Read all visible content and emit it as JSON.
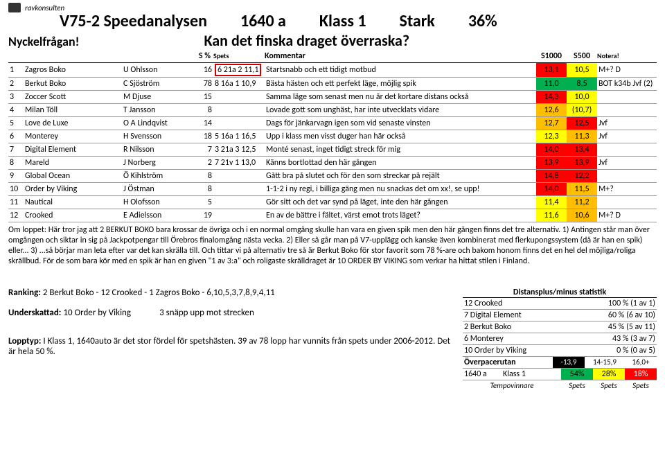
{
  "logo_text": "ravkonsulten",
  "header": {
    "title": "V75-2 Speedanalysen",
    "dist": "1640 a",
    "klass": "Klass 1",
    "start": "Stark",
    "pct": "36%"
  },
  "nyckel": {
    "label": "Nyckelfrågan!",
    "question": "Kan det finska draget överraska?"
  },
  "col": {
    "spct": "S %",
    "spets": "Spets",
    "komm": "Kommentar",
    "s1000": "S1000",
    "s500": "S500",
    "note": "Notera!"
  },
  "colors": {
    "red": "#ff0000",
    "orange": "#ffbf00",
    "yellow": "#ffff00",
    "green": "#00b050",
    "none": ""
  },
  "rows": [
    {
      "n": "1",
      "horse": "Zagros Boko",
      "driver": "U Ohlsson",
      "spct": "16",
      "spets": "6 21a 2 11,1",
      "spets_box": true,
      "komm": "Startsnabb och ett tidigt motbud",
      "s1000": "13,1",
      "c1": "red",
      "s500": "10,5",
      "c2": "yellow",
      "note": "M+? D"
    },
    {
      "n": "2",
      "horse": "Berkut Boko",
      "driver": "C Sjöström",
      "spct": "78",
      "spets": "8 16a 1 10,9",
      "komm": "Bästa hästen och ett perfekt läge, möjlig spik",
      "s1000": "11,0",
      "c1": "green",
      "s500": "8,5",
      "c2": "green",
      "note": "BOT k34b Jvf (2)"
    },
    {
      "n": "3",
      "horse": "Zoccer Scott",
      "driver": "M Djuse",
      "spct": "15",
      "spets": "",
      "komm": "Samma läge som senast men nu är det kortare distans också",
      "s1000": "14,3",
      "c1": "red",
      "s500": "10,0",
      "c2": "yellow",
      "note": ""
    },
    {
      "n": "4",
      "horse": "Milan Töll",
      "driver": "T Jansson",
      "spct": "8",
      "spets": "",
      "komm": "Lovade gott som unghäst, har inte utvecklats vidare",
      "s1000": "12,6",
      "c1": "orange",
      "s500": "(10,7)",
      "c2": "yellow",
      "note": ""
    },
    {
      "n": "5",
      "horse": "Love de Luxe",
      "driver": "O A Lindqvist",
      "spct": "14",
      "spets": "",
      "komm": "Dags för jänkarvagn igen som vid senaste vinsten",
      "s1000": "12,7",
      "c1": "orange",
      "s500": "12,5",
      "c2": "red",
      "note": "Jvf"
    },
    {
      "n": "6",
      "horse": "Monterey",
      "driver": "H Svensson",
      "spct": "18",
      "spets": "5 16a 1 16,5",
      "komm": "Upp i klass men visst duger han här också",
      "s1000": "12,3",
      "c1": "yellow",
      "s500": "11,3",
      "c2": "orange",
      "note": "Jvf"
    },
    {
      "n": "7",
      "horse": "Digital Element",
      "driver": "R Nilsson",
      "spct": "7",
      "spets": "3 21a 3 12,5",
      "komm": "Monté senast, inget tidigt streck för mig",
      "s1000": "14,0",
      "c1": "red",
      "s500": "13,4",
      "c2": "red",
      "note": ""
    },
    {
      "n": "8",
      "horse": "Mareld",
      "driver": "J Norberg",
      "spct": "2",
      "spets": "7 21v 1 13,0",
      "komm": "Känns bortlottad den här gången",
      "s1000": "13,9",
      "c1": "red",
      "s500": "13,9",
      "c2": "red",
      "note": "Jvf"
    },
    {
      "n": "9",
      "horse": "Global Ocean",
      "driver": "Ö Kihlström",
      "spct": "8",
      "spets": "",
      "komm": "Gått bra på slutet och för den som streckar på rejält",
      "s1000": "14,8",
      "c1": "red",
      "s500": "12,2",
      "c2": "red",
      "note": ""
    },
    {
      "n": "10",
      "horse": "Order by Viking",
      "driver": "J Östman",
      "spct": "8",
      "spets": "",
      "komm": "1-1-2 i ny regi, i billiga gäng men nu snackas det om xx!, se upp!",
      "s1000": "14,0",
      "c1": "red",
      "s500": "11,5",
      "c2": "orange",
      "note": "M+?"
    },
    {
      "n": "11",
      "horse": "Nautical",
      "driver": "H Olofsson",
      "spct": "5",
      "spets": "",
      "komm": "Gör sitt och det var synd på läget, inte den här gången",
      "s1000": "11,4",
      "c1": "yellow",
      "s500": "11,2",
      "c2": "orange",
      "note": ""
    },
    {
      "n": "12",
      "horse": "Crooked",
      "driver": "E Adielsson",
      "spct": "19",
      "spets": "",
      "komm": "En av de bättre i fältet, värst emot trots läget?",
      "s1000": "11,6",
      "c1": "yellow",
      "s500": "10,6",
      "c2": "orange",
      "note": "M+? D"
    }
  ],
  "om": "Om loppet: Här tror jag att 2 BERKUT BOKO bara krossar de övriga och i en normal omgång skulle han vara en given spik men den här gången finns det tre alternativ. 1) Antingen står man över omgången och siktar in sig på Jackpotpengar till Örebros finalomgång nästa vecka. 2) Eller så går man på V7-upplägg och kanske även kombinerat med flerkupongssystem (då är han en spik) eller... 3) ...så börjar man leta efter var det kan skrälla till. Och tittar vi på alternativ tre så är Berkut Boko för stor favorit som 78 %-are och bakom honom finns det en hel del möjliga/roliga skrällbud. För de som bara kör med en spik är han en given \"1 av 3:a\" och roligaste skrälldraget är 10 ORDER BY VIKING som verkar ha hittat stilen i Finland.",
  "ranking": {
    "label": "Ranking:",
    "text": "2 Berkut Boko - 12 Crooked - 1 Zagros Boko - 6,10,5,3,7,8,9,4,11"
  },
  "under": {
    "label": "Underskattad:",
    "horse": "10 Order by Viking",
    "extra": "3 snäpp upp mot strecken"
  },
  "lopptyp": {
    "label": "Lopptyp:",
    "text": "I Klass 1, 1640auto är det stor fördel för spetshästen. 39 av 78 lopp har vunnits från spets under 2006-2012. Det är hela 50 %."
  },
  "stats": {
    "title": "Distansplus/minus statistik",
    "rows": [
      {
        "name": "12 Crooked",
        "val": "100 % (1 av 1)"
      },
      {
        "name": "7 Digital Element",
        "val": "60 % (6 av 10)"
      },
      {
        "name": "2 Berkut Boko",
        "val": "45 % (5 av 11)"
      },
      {
        "name": "6 Monterey",
        "val": "43 % (3 av 7)"
      },
      {
        "name": "10 Order by Viking",
        "val": "0 % (0 av 5)"
      }
    ],
    "over": {
      "label": "Överpacerutan",
      "a": "-13,9",
      "b": "14-15,9",
      "c": "16,0+"
    },
    "klass": {
      "a": "1640 a",
      "b": "Klass 1",
      "c": "54%",
      "cc": "green",
      "d": "28%",
      "dc": "yellow",
      "e": "18%",
      "ec": "red"
    },
    "tempo": {
      "label": "Tempovinnare",
      "b": "Spets",
      "c": "Spets",
      "d": "Spets"
    }
  }
}
